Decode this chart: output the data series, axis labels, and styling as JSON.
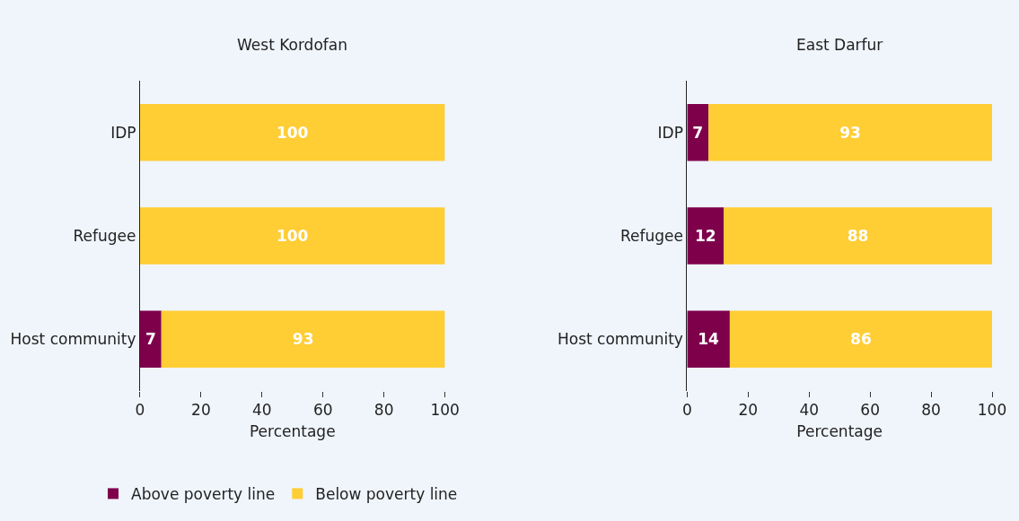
{
  "chart_data": [
    {
      "type": "bar",
      "title": "West Kordofan",
      "orientation": "horizontal",
      "stacked": true,
      "categories": [
        "IDP",
        "Refugee",
        "Host community"
      ],
      "xlabel": "Percentage",
      "xlim": [
        0,
        100
      ],
      "xticks": [
        0,
        20,
        40,
        60,
        80,
        100
      ],
      "grid": false,
      "legend": "bottom left",
      "series": [
        {
          "name": "Above poverty line",
          "color": "#7e004b",
          "values": [
            0,
            0,
            7
          ],
          "value_labels": [
            null,
            null,
            "7"
          ]
        },
        {
          "name": "Below poverty line",
          "color": "#ffcd34",
          "values": [
            100,
            100,
            93
          ],
          "value_labels": [
            "100",
            "100",
            "93"
          ]
        }
      ]
    },
    {
      "type": "bar",
      "title": "East Darfur",
      "orientation": "horizontal",
      "stacked": true,
      "categories": [
        "IDP",
        "Refugee",
        "Host community"
      ],
      "xlabel": "Percentage",
      "xlim": [
        0,
        100
      ],
      "xticks": [
        0,
        20,
        40,
        60,
        80,
        100
      ],
      "grid": false,
      "legend": "bottom left",
      "series": [
        {
          "name": "Above poverty line",
          "color": "#7e004b",
          "values": [
            7,
            12,
            14
          ],
          "value_labels": [
            "7",
            "12",
            "14"
          ]
        },
        {
          "name": "Below poverty line",
          "color": "#ffcd34",
          "values": [
            93,
            88,
            86
          ],
          "value_labels": [
            "93",
            "88",
            "86"
          ]
        }
      ]
    }
  ]
}
